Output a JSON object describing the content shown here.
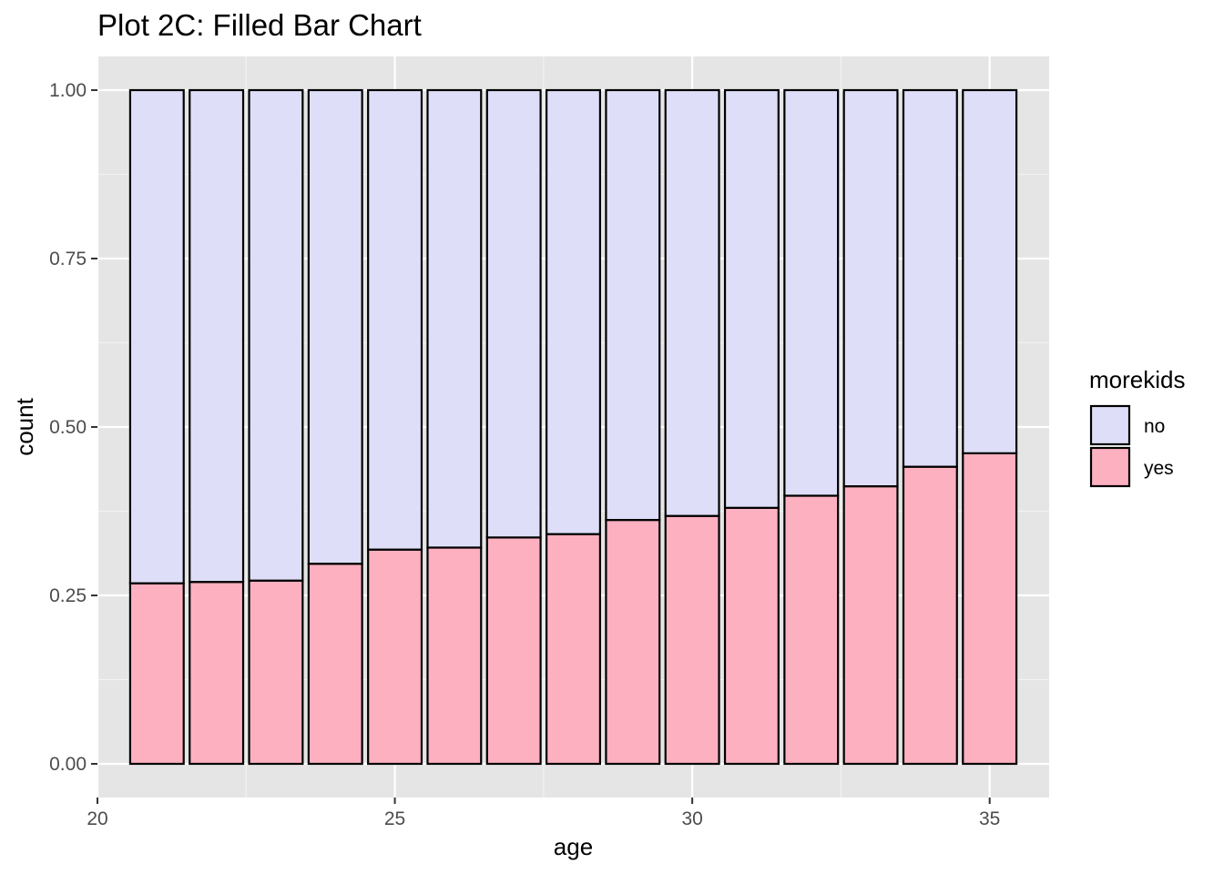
{
  "chart_data": {
    "type": "bar",
    "stacking": "fill",
    "title": "Plot 2C: Filled Bar Chart",
    "xlabel": "age",
    "ylabel": "count",
    "x": [
      21,
      22,
      23,
      24,
      25,
      26,
      27,
      28,
      29,
      30,
      31,
      32,
      33,
      34,
      35
    ],
    "series": [
      {
        "name": "no",
        "color": "#DEDEF8",
        "values": [
          0.732,
          0.73,
          0.728,
          0.703,
          0.682,
          0.679,
          0.664,
          0.659,
          0.638,
          0.632,
          0.62,
          0.602,
          0.588,
          0.559,
          0.539
        ]
      },
      {
        "name": "yes",
        "color": "#FDB0C0",
        "values": [
          0.268,
          0.27,
          0.272,
          0.297,
          0.318,
          0.321,
          0.336,
          0.341,
          0.362,
          0.368,
          0.38,
          0.398,
          0.412,
          0.441,
          0.461
        ]
      }
    ],
    "xlim": [
      20,
      36
    ],
    "ylim": [
      -0.05,
      1.05
    ],
    "x_ticks": [
      20,
      25,
      30,
      35
    ],
    "x_tick_labels": [
      "20",
      "25",
      "30",
      "35"
    ],
    "y_ticks": [
      0,
      0.25,
      0.5,
      0.75,
      1
    ],
    "y_tick_labels": [
      "0.00",
      "0.25",
      "0.50",
      "0.75",
      "1.00"
    ],
    "legend": {
      "title": "morekids",
      "position": "right",
      "entries": [
        "no",
        "yes"
      ]
    },
    "grid": true,
    "panel_background": "#E5E5E5",
    "bar_outline": "#000000"
  }
}
